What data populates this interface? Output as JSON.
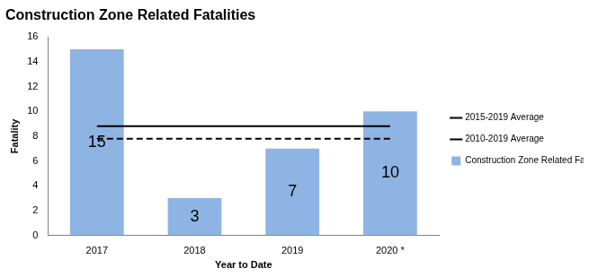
{
  "chart_data": {
    "type": "bar",
    "title": "Construction Zone Related Fatalities",
    "x_label": "Year to Date",
    "y_label": "Fatality",
    "categories": [
      "2017",
      "2018",
      "2019",
      "2020 *"
    ],
    "series": [
      {
        "name": "Construction Zone Related Fatalities",
        "type": "bar",
        "color": "#8eb4e3",
        "values": [
          15,
          3,
          7,
          10
        ]
      },
      {
        "name": "2015-2019 Average",
        "type": "line",
        "color": "#000000",
        "line_style": "dashed",
        "values": [
          7.8,
          7.8,
          7.8,
          7.8
        ]
      },
      {
        "name": "2010-2019 Average",
        "type": "line",
        "color": "#000000",
        "line_style": "solid",
        "values": [
          8.8,
          8.8,
          8.8,
          8.8
        ]
      }
    ],
    "ylim": [
      0,
      16
    ],
    "yticks": [
      0,
      2,
      4,
      6,
      8,
      10,
      12,
      14,
      16
    ],
    "grid": false,
    "legend": "right",
    "data_labels": true
  }
}
